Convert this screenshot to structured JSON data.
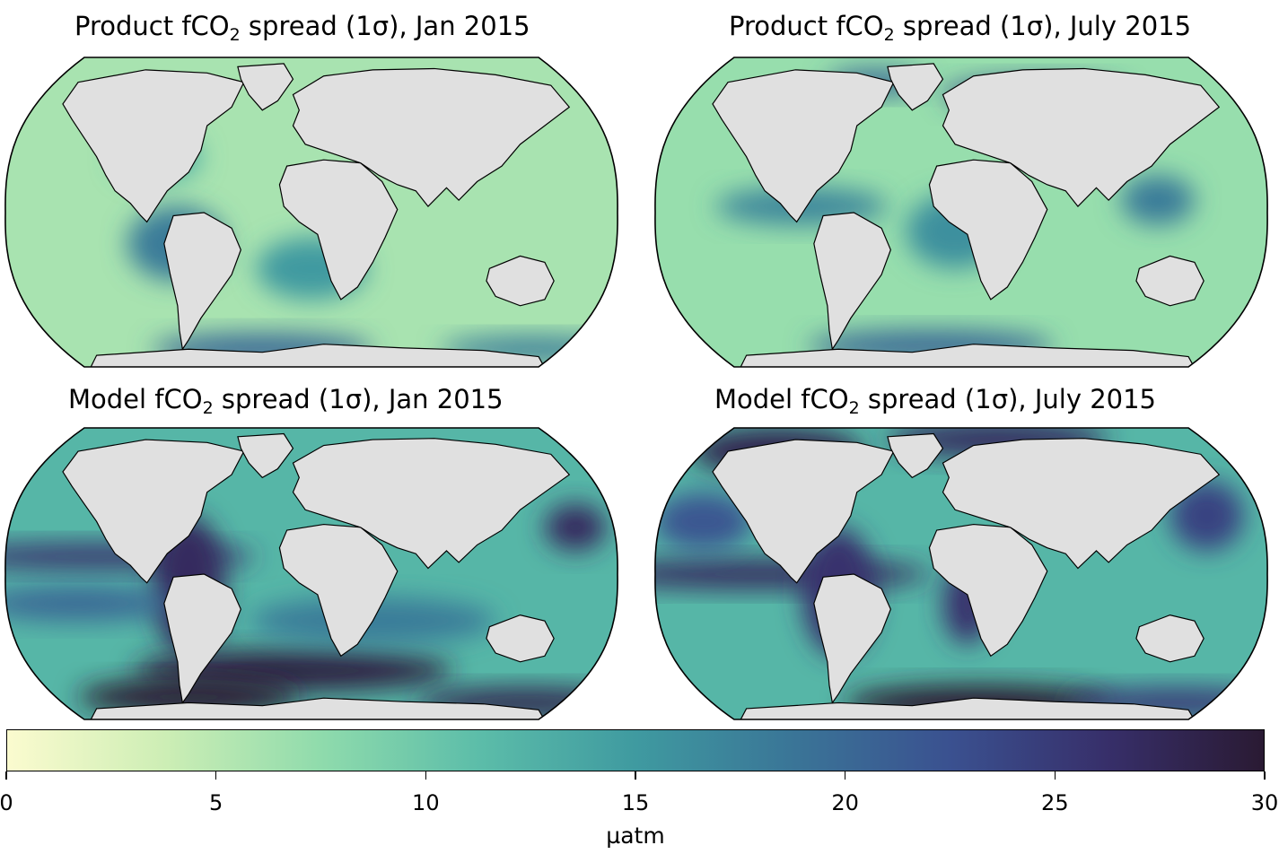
{
  "panels": [
    {
      "title_pre": "Product fCO",
      "title_sub": "2",
      "title_post": " spread (1σ), Jan 2015"
    },
    {
      "title_pre": "Product fCO",
      "title_sub": "2",
      "title_post": " spread (1σ), July 2015"
    },
    {
      "title_pre": "Model fCO",
      "title_sub": "2",
      "title_post": " spread (1σ), Jan 2015"
    },
    {
      "title_pre": "Model fCO",
      "title_sub": "2",
      "title_post": " spread (1σ), July 2015"
    }
  ],
  "colorbar": {
    "label": "µatm",
    "min": 0,
    "max": 30,
    "ticks": [
      "0",
      "5",
      "10",
      "15",
      "20",
      "25",
      "30"
    ],
    "colormap_stops": [
      "#fbfbcf",
      "#cdeeb5",
      "#8fdbac",
      "#5cbda9",
      "#3f9aa0",
      "#3a7597",
      "#3a5190",
      "#372f6a",
      "#2a1a33"
    ]
  },
  "land_color": "#e0e0e0",
  "projection": "Robinson"
}
